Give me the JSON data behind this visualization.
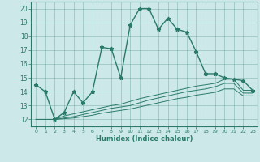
{
  "xlabel": "Humidex (Indice chaleur)",
  "bg_color": "#cce8e8",
  "line_color": "#2a7a6a",
  "xlim": [
    -0.5,
    23.5
  ],
  "ylim": [
    11.5,
    20.5
  ],
  "x_ticks": [
    0,
    1,
    2,
    3,
    4,
    5,
    6,
    7,
    8,
    9,
    10,
    11,
    12,
    13,
    14,
    15,
    16,
    17,
    18,
    19,
    20,
    21,
    22,
    23
  ],
  "y_ticks": [
    12,
    13,
    14,
    15,
    16,
    17,
    18,
    19,
    20
  ],
  "main_line": {
    "x": [
      0,
      1,
      2,
      3,
      4,
      5,
      6,
      7,
      8,
      9,
      10,
      11,
      12,
      13,
      14,
      15,
      16,
      17,
      18,
      19,
      20,
      21,
      22,
      23
    ],
    "y": [
      14.5,
      14.0,
      12.0,
      12.5,
      14.0,
      13.2,
      14.0,
      17.2,
      17.1,
      15.0,
      18.8,
      20.0,
      20.0,
      18.5,
      19.3,
      18.5,
      18.3,
      16.9,
      15.3,
      15.3,
      15.0,
      14.9,
      14.8,
      14.1
    ]
  },
  "lower_line1": {
    "x": [
      0,
      1,
      2,
      3,
      4,
      5,
      6,
      7,
      8,
      9,
      10,
      11,
      12,
      13,
      14,
      15,
      16,
      17,
      18,
      19,
      20,
      21,
      22,
      23
    ],
    "y": [
      12.0,
      12.0,
      12.0,
      12.25,
      12.4,
      12.55,
      12.7,
      12.85,
      13.0,
      13.1,
      13.3,
      13.5,
      13.65,
      13.8,
      13.95,
      14.1,
      14.25,
      14.4,
      14.5,
      14.6,
      14.9,
      14.9,
      14.1,
      14.1
    ]
  },
  "lower_line2": {
    "x": [
      0,
      1,
      2,
      3,
      4,
      5,
      6,
      7,
      8,
      9,
      10,
      11,
      12,
      13,
      14,
      15,
      16,
      17,
      18,
      19,
      20,
      21,
      22,
      23
    ],
    "y": [
      12.0,
      12.0,
      12.0,
      12.1,
      12.2,
      12.35,
      12.5,
      12.65,
      12.8,
      12.9,
      13.0,
      13.2,
      13.4,
      13.55,
      13.7,
      13.85,
      14.0,
      14.1,
      14.2,
      14.35,
      14.6,
      14.6,
      13.9,
      13.9
    ]
  },
  "lower_line3": {
    "x": [
      0,
      1,
      2,
      3,
      4,
      5,
      6,
      7,
      8,
      9,
      10,
      11,
      12,
      13,
      14,
      15,
      16,
      17,
      18,
      19,
      20,
      21,
      22,
      23
    ],
    "y": [
      12.0,
      12.0,
      12.0,
      12.05,
      12.1,
      12.2,
      12.3,
      12.45,
      12.55,
      12.65,
      12.75,
      12.9,
      13.05,
      13.2,
      13.35,
      13.5,
      13.6,
      13.75,
      13.85,
      13.95,
      14.2,
      14.2,
      13.7,
      13.7
    ]
  }
}
